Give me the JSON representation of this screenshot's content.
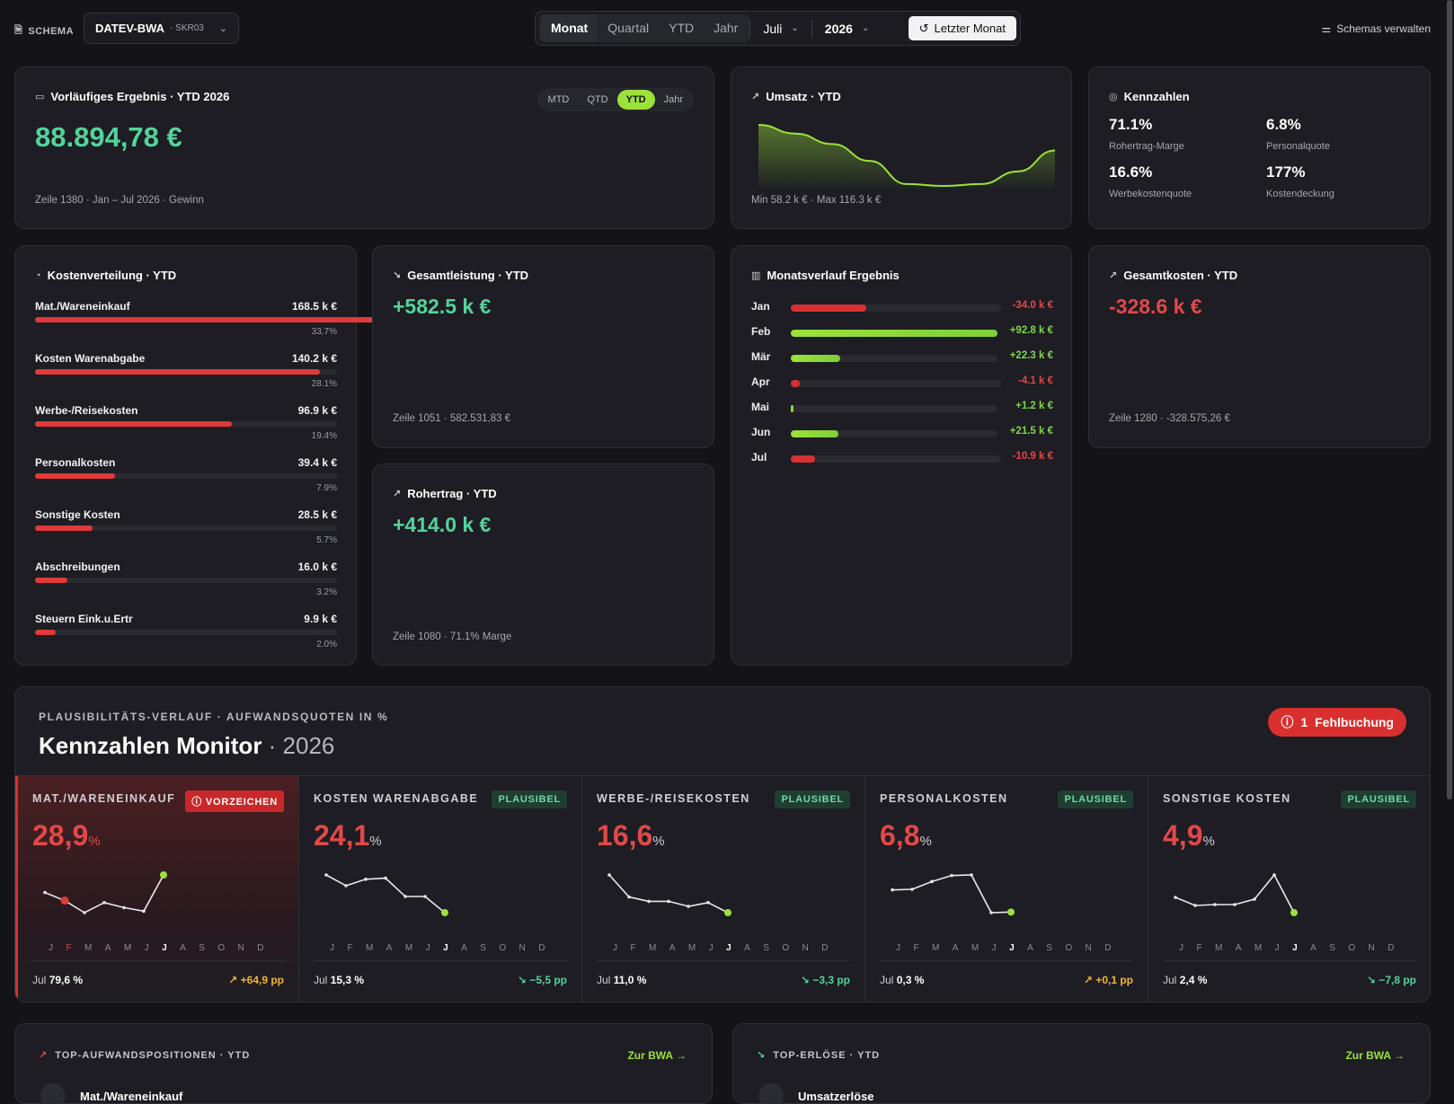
{
  "topbar": {
    "schema_label": "SCHEMA",
    "schema_name": "DATEV-BWA",
    "schema_sub": "· SKR03",
    "period_tabs": [
      "Monat",
      "Quartal",
      "YTD",
      "Jahr"
    ],
    "active_period": "Monat",
    "month": "Juli",
    "year": "2026",
    "last_month_label": "Letzter Monat",
    "manage_label": "Schemas verwalten"
  },
  "result": {
    "title": "Vorläufiges Ergebnis · YTD 2026",
    "value": "88.894,78 €",
    "footer": "Zeile 1380 · Jan – Jul 2026 · Gewinn",
    "toggle": [
      "MTD",
      "QTD",
      "YTD",
      "Jahr"
    ],
    "toggle_active": "YTD"
  },
  "umsatz": {
    "title": "Umsatz · YTD",
    "footer": "Min 58.2 k € · Max 116.3 k €",
    "series": [
      116.3,
      108,
      98,
      82,
      60,
      58.2,
      60,
      72,
      92
    ]
  },
  "kennzahlen": {
    "title": "Kennzahlen",
    "items": [
      {
        "value": "71.1%",
        "label": "Rohertrag-Marge"
      },
      {
        "value": "6.8%",
        "label": "Personalquote"
      },
      {
        "value": "16.6%",
        "label": "Werbekostenquote"
      },
      {
        "value": "177%",
        "label": "Kostendeckung"
      }
    ]
  },
  "kostenverteilung": {
    "title": "Kostenverteilung · YTD",
    "rows": [
      {
        "name": "Mat./Wareneinkauf",
        "value": "168.5 k €",
        "pct": "33.7%",
        "share": 33.7
      },
      {
        "name": "Kosten Warenabgabe",
        "value": "140.2 k €",
        "pct": "28.1%",
        "share": 28.1
      },
      {
        "name": "Werbe-/Reisekosten",
        "value": "96.9 k €",
        "pct": "19.4%",
        "share": 19.4
      },
      {
        "name": "Personalkosten",
        "value": "39.4 k €",
        "pct": "7.9%",
        "share": 7.9
      },
      {
        "name": "Sonstige Kosten",
        "value": "28.5 k €",
        "pct": "5.7%",
        "share": 5.7
      },
      {
        "name": "Abschreibungen",
        "value": "16.0 k €",
        "pct": "3.2%",
        "share": 3.2
      },
      {
        "name": "Steuern Eink.u.Ertr",
        "value": "9.9 k €",
        "pct": "2.0%",
        "share": 2.0
      }
    ]
  },
  "gesamtleistung": {
    "title": "Gesamtleistung · YTD",
    "value": "+582.5 k €",
    "footer": "Zeile 1051 · 582.531,83 €"
  },
  "rohertrag": {
    "title": "Rohertrag · YTD",
    "value": "+414.0 k €",
    "footer": "Zeile 1080 · 71.1% Marge"
  },
  "gesamtkosten": {
    "title": "Gesamtkosten · YTD",
    "value": "-328.6 k €",
    "footer": "Zeile 1280 · -328.575,26 €"
  },
  "monatsverlauf": {
    "title": "Monatsverlauf Ergebnis",
    "max_abs": 92.8,
    "rows": [
      {
        "m": "Jan",
        "value": "-34.0 k €",
        "num": -34.0
      },
      {
        "m": "Feb",
        "value": "+92.8 k €",
        "num": 92.8
      },
      {
        "m": "Mär",
        "value": "+22.3 k €",
        "num": 22.3
      },
      {
        "m": "Apr",
        "value": "-4.1 k €",
        "num": -4.1
      },
      {
        "m": "Mai",
        "value": "+1.2 k €",
        "num": 1.2
      },
      {
        "m": "Jun",
        "value": "+21.5 k €",
        "num": 21.5
      },
      {
        "m": "Jul",
        "value": "-10.9 k €",
        "num": -10.9
      }
    ]
  },
  "monitor": {
    "kicker": "PLAUSIBILITÄTS-VERLAUF · AUFWANDSQUOTEN IN %",
    "title": "Kennzahlen Monitor",
    "year": "· 2026",
    "fehl_count": "1",
    "fehl_label": "Fehlbuchung",
    "months": [
      "J",
      "F",
      "M",
      "A",
      "M",
      "J",
      "J",
      "A",
      "S",
      "O",
      "N",
      "D"
    ],
    "cols": [
      {
        "title": "MAT./WARENEINKAUF",
        "badge": "VORZEICHEN",
        "status": "bad",
        "value": "28,9",
        "unit": "%",
        "jul_label": "Jul",
        "jul": "79,6 %",
        "delta": "↗ +64,9 pp",
        "delta_dir": "up",
        "series": [
          30.5,
          28.9,
          26.5,
          28.5,
          27.5,
          26.8,
          34
        ],
        "flag_month": 1
      },
      {
        "title": "KOSTEN WARENABGABE",
        "badge": "PLAUSIBEL",
        "status": "ok",
        "value": "24,1",
        "unit": "%",
        "jul_label": "Jul",
        "jul": "15,3 %",
        "delta": "↘ −5,5 pp",
        "delta_dir": "down",
        "series": [
          25,
          24,
          24.6,
          24.7,
          23,
          23,
          21.5
        ],
        "flag_month": -1
      },
      {
        "title": "WERBE-/REISEKOSTEN",
        "badge": "PLAUSIBEL",
        "status": "ok",
        "value": "16,6",
        "unit": "%",
        "jul_label": "Jul",
        "jul": "11,0 %",
        "delta": "↘ −3,3 pp",
        "delta_dir": "down",
        "series": [
          21,
          17.5,
          16.8,
          16.8,
          16,
          16.6,
          15
        ],
        "flag_month": -1
      },
      {
        "title": "PERSONALKOSTEN",
        "badge": "PLAUSIBEL",
        "status": "ok",
        "value": "6,8",
        "unit": "%",
        "jul_label": "Jul",
        "jul": "0,3 %",
        "delta": "↗ +0,1 pp",
        "delta_dir": "upwarn",
        "series": [
          5.8,
          5.9,
          7.2,
          8.2,
          8.3,
          2,
          2.1
        ],
        "flag_month": -1
      },
      {
        "title": "SONSTIGE KOSTEN",
        "badge": "PLAUSIBEL",
        "status": "ok",
        "value": "4,9",
        "unit": "%",
        "jul_label": "Jul",
        "jul": "2,4 %",
        "delta": "↘ −7,8 pp",
        "delta_dir": "down",
        "series": [
          5.5,
          4.6,
          4.7,
          4.7,
          5.3,
          8,
          3.8
        ],
        "flag_month": -1
      }
    ]
  },
  "top_aufwand": {
    "title": "TOP-AUFWANDSPOSITIONEN · YTD",
    "link": "Zur BWA →",
    "first": "Mat./Wareneinkauf"
  },
  "top_erloese": {
    "title": "TOP-ERLÖSE · YTD",
    "link": "Zur BWA →",
    "first": "Umsatzerlöse"
  },
  "colors": {
    "green": "#53d39a",
    "lime": "#9be23a",
    "red": "#e03a3a",
    "warn": "#f0b43a"
  }
}
